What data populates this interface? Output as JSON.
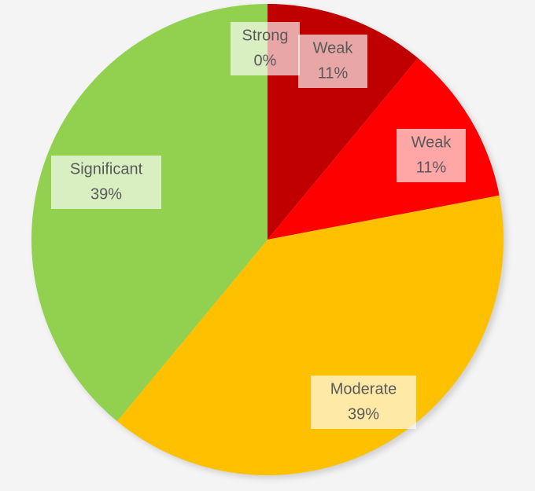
{
  "chart_data": {
    "type": "pie",
    "categories": [
      "Weak",
      "Weak",
      "Moderate",
      "Significant",
      "Strong"
    ],
    "values": [
      11,
      11,
      39,
      39,
      0
    ],
    "value_labels": [
      "11%",
      "11%",
      "39%",
      "39%",
      "0%"
    ],
    "colors": [
      "#c00000",
      "#ff0000",
      "#ffc000",
      "#92d050",
      "#00b050"
    ]
  }
}
